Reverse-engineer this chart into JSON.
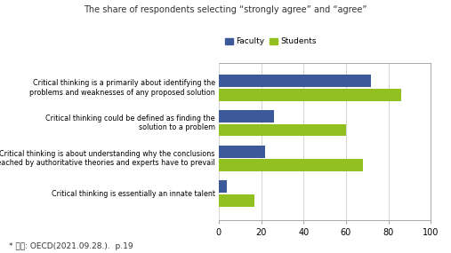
{
  "title": "The share of respondents selecting “strongly agree” and “agree”",
  "categories": [
    "Critical thinking is a primarily about identifying the\nproblems and weaknesses of any proposed solution",
    "Critical thinking could be defined as finding the\nsolution to a problem",
    "Critical thinking is about understanding why the conclusions\nreached by authoritative theories and experts have to prevail",
    "Critical thinking is essentially an innate talent"
  ],
  "faculty_values": [
    72,
    26,
    22,
    4
  ],
  "student_values": [
    86,
    60,
    68,
    17
  ],
  "faculty_color": "#3c5a99",
  "student_color": "#92c020",
  "xlim": [
    0,
    100
  ],
  "xticks": [
    0,
    20,
    40,
    60,
    80,
    100
  ],
  "footnote": "* 자료: OECD(2021.09.28.).  p.19",
  "legend_labels": [
    "Faculty",
    "Students"
  ],
  "bar_height": 0.35,
  "background_color": "#ffffff",
  "grid_color": "#cccccc"
}
